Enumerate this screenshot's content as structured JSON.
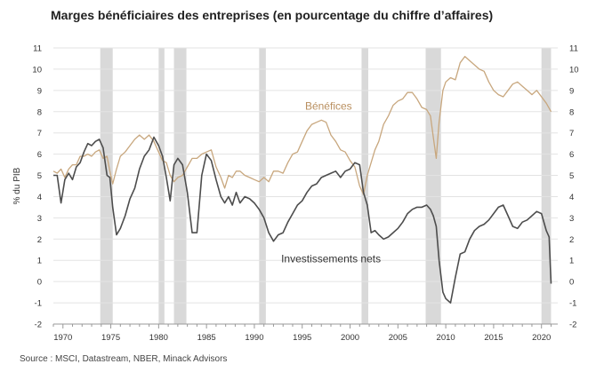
{
  "title": "Marges bénéficiaires des entreprises (en pourcentage du chiffre d’affaires)",
  "source": "Source : MSCI, Datastream, NBER, Minack Advisors",
  "chart_data": {
    "type": "line",
    "ylabel": "% du PIB",
    "xlabel": "",
    "xlim": [
      1969,
      2021.7
    ],
    "ylim": [
      -2,
      11
    ],
    "y_ticks": [
      -2,
      -1,
      0,
      1,
      2,
      3,
      4,
      5,
      6,
      7,
      8,
      9,
      10,
      11
    ],
    "x_ticks": [
      1970,
      1975,
      1980,
      1985,
      1990,
      1995,
      2000,
      2005,
      2010,
      2015,
      2020
    ],
    "grid": "horizontal",
    "recessions": [
      [
        1973.9,
        1975.2
      ],
      [
        1980.0,
        1980.6
      ],
      [
        1981.6,
        1982.9
      ],
      [
        1990.5,
        1991.2
      ],
      [
        2001.2,
        2001.9
      ],
      [
        2007.9,
        2009.5
      ],
      [
        2020.0,
        2021.0
      ]
    ],
    "colors": {
      "profits": "#c8a77e",
      "net_investment": "#4d4d4d",
      "recession": "#d9d9d9",
      "grid": "#e3e3e3"
    },
    "series": [
      {
        "name": "Bénéfices",
        "points": [
          [
            1969.0,
            5.2
          ],
          [
            1969.4,
            5.1
          ],
          [
            1969.8,
            5.3
          ],
          [
            1970.2,
            4.9
          ],
          [
            1970.6,
            5.3
          ],
          [
            1971.0,
            5.5
          ],
          [
            1971.4,
            5.5
          ],
          [
            1971.8,
            5.9
          ],
          [
            1972.2,
            5.9
          ],
          [
            1972.6,
            6.0
          ],
          [
            1973.0,
            5.9
          ],
          [
            1973.4,
            6.1
          ],
          [
            1973.8,
            6.2
          ],
          [
            1974.2,
            5.8
          ],
          [
            1974.6,
            5.9
          ],
          [
            1974.9,
            5.2
          ],
          [
            1975.2,
            4.6
          ],
          [
            1975.6,
            5.3
          ],
          [
            1976.0,
            5.9
          ],
          [
            1976.5,
            6.1
          ],
          [
            1977.0,
            6.4
          ],
          [
            1977.5,
            6.7
          ],
          [
            1978.0,
            6.9
          ],
          [
            1978.5,
            6.7
          ],
          [
            1979.0,
            6.9
          ],
          [
            1979.5,
            6.6
          ],
          [
            1980.0,
            6.1
          ],
          [
            1980.4,
            5.7
          ],
          [
            1980.8,
            5.6
          ],
          [
            1981.2,
            5.0
          ],
          [
            1981.6,
            4.7
          ],
          [
            1982.0,
            4.9
          ],
          [
            1982.5,
            5.0
          ],
          [
            1983.0,
            5.4
          ],
          [
            1983.5,
            5.8
          ],
          [
            1984.0,
            5.8
          ],
          [
            1984.5,
            6.0
          ],
          [
            1985.0,
            6.1
          ],
          [
            1985.5,
            6.2
          ],
          [
            1986.0,
            5.4
          ],
          [
            1986.5,
            4.9
          ],
          [
            1986.9,
            4.4
          ],
          [
            1987.3,
            5.0
          ],
          [
            1987.7,
            4.9
          ],
          [
            1988.1,
            5.2
          ],
          [
            1988.5,
            5.2
          ],
          [
            1989.0,
            5.0
          ],
          [
            1989.5,
            4.9
          ],
          [
            1990.0,
            4.8
          ],
          [
            1990.5,
            4.7
          ],
          [
            1991.0,
            4.9
          ],
          [
            1991.5,
            4.7
          ],
          [
            1992.0,
            5.2
          ],
          [
            1992.5,
            5.2
          ],
          [
            1993.0,
            5.1
          ],
          [
            1993.5,
            5.6
          ],
          [
            1994.0,
            6.0
          ],
          [
            1994.5,
            6.1
          ],
          [
            1995.0,
            6.6
          ],
          [
            1995.5,
            7.1
          ],
          [
            1996.0,
            7.4
          ],
          [
            1996.5,
            7.5
          ],
          [
            1997.0,
            7.6
          ],
          [
            1997.5,
            7.5
          ],
          [
            1998.0,
            6.9
          ],
          [
            1998.5,
            6.6
          ],
          [
            1999.0,
            6.2
          ],
          [
            1999.5,
            6.1
          ],
          [
            2000.0,
            5.7
          ],
          [
            2000.5,
            5.4
          ],
          [
            2001.0,
            4.5
          ],
          [
            2001.4,
            4.1
          ],
          [
            2001.8,
            5.0
          ],
          [
            2002.2,
            5.6
          ],
          [
            2002.6,
            6.2
          ],
          [
            2003.0,
            6.6
          ],
          [
            2003.5,
            7.4
          ],
          [
            2004.0,
            7.8
          ],
          [
            2004.5,
            8.3
          ],
          [
            2005.0,
            8.5
          ],
          [
            2005.5,
            8.6
          ],
          [
            2006.0,
            8.9
          ],
          [
            2006.5,
            8.9
          ],
          [
            2007.0,
            8.6
          ],
          [
            2007.5,
            8.2
          ],
          [
            2008.0,
            8.1
          ],
          [
            2008.4,
            7.8
          ],
          [
            2008.7,
            6.8
          ],
          [
            2009.0,
            5.8
          ],
          [
            2009.3,
            7.5
          ],
          [
            2009.7,
            9.0
          ],
          [
            2010.0,
            9.4
          ],
          [
            2010.5,
            9.6
          ],
          [
            2011.0,
            9.5
          ],
          [
            2011.5,
            10.3
          ],
          [
            2012.0,
            10.6
          ],
          [
            2012.5,
            10.4
          ],
          [
            2013.0,
            10.2
          ],
          [
            2013.5,
            10.0
          ],
          [
            2014.0,
            9.9
          ],
          [
            2014.5,
            9.4
          ],
          [
            2015.0,
            9.0
          ],
          [
            2015.5,
            8.8
          ],
          [
            2016.0,
            8.7
          ],
          [
            2016.5,
            9.0
          ],
          [
            2017.0,
            9.3
          ],
          [
            2017.5,
            9.4
          ],
          [
            2018.0,
            9.2
          ],
          [
            2018.5,
            9.0
          ],
          [
            2019.0,
            8.8
          ],
          [
            2019.5,
            9.0
          ],
          [
            2020.0,
            8.7
          ],
          [
            2020.5,
            8.4
          ],
          [
            2021.0,
            8.0
          ]
        ]
      },
      {
        "name": "Investissements nets",
        "points": [
          [
            1969.0,
            5.0
          ],
          [
            1969.4,
            5.0
          ],
          [
            1969.8,
            3.7
          ],
          [
            1970.2,
            4.8
          ],
          [
            1970.6,
            5.1
          ],
          [
            1971.0,
            4.8
          ],
          [
            1971.4,
            5.4
          ],
          [
            1971.8,
            5.6
          ],
          [
            1972.2,
            6.1
          ],
          [
            1972.6,
            6.5
          ],
          [
            1973.0,
            6.4
          ],
          [
            1973.4,
            6.6
          ],
          [
            1973.8,
            6.7
          ],
          [
            1974.2,
            6.3
          ],
          [
            1974.6,
            5.0
          ],
          [
            1974.9,
            4.9
          ],
          [
            1975.2,
            3.5
          ],
          [
            1975.6,
            2.2
          ],
          [
            1976.0,
            2.5
          ],
          [
            1976.5,
            3.1
          ],
          [
            1977.0,
            3.9
          ],
          [
            1977.5,
            4.4
          ],
          [
            1978.0,
            5.3
          ],
          [
            1978.5,
            5.9
          ],
          [
            1979.0,
            6.2
          ],
          [
            1979.5,
            6.8
          ],
          [
            1980.0,
            6.4
          ],
          [
            1980.4,
            5.9
          ],
          [
            1980.8,
            4.9
          ],
          [
            1981.2,
            3.8
          ],
          [
            1981.6,
            5.5
          ],
          [
            1982.0,
            5.8
          ],
          [
            1982.5,
            5.5
          ],
          [
            1983.0,
            4.2
          ],
          [
            1983.5,
            2.3
          ],
          [
            1984.0,
            2.3
          ],
          [
            1984.5,
            5.0
          ],
          [
            1985.0,
            6.0
          ],
          [
            1985.5,
            5.7
          ],
          [
            1986.0,
            4.8
          ],
          [
            1986.5,
            4.0
          ],
          [
            1986.9,
            3.7
          ],
          [
            1987.3,
            4.0
          ],
          [
            1987.7,
            3.6
          ],
          [
            1988.1,
            4.2
          ],
          [
            1988.5,
            3.7
          ],
          [
            1989.0,
            4.0
          ],
          [
            1989.5,
            3.9
          ],
          [
            1990.0,
            3.7
          ],
          [
            1990.5,
            3.4
          ],
          [
            1991.0,
            3.0
          ],
          [
            1991.5,
            2.3
          ],
          [
            1992.0,
            1.9
          ],
          [
            1992.5,
            2.2
          ],
          [
            1993.0,
            2.3
          ],
          [
            1993.5,
            2.8
          ],
          [
            1994.0,
            3.2
          ],
          [
            1994.5,
            3.6
          ],
          [
            1995.0,
            3.8
          ],
          [
            1995.5,
            4.2
          ],
          [
            1996.0,
            4.5
          ],
          [
            1996.5,
            4.6
          ],
          [
            1997.0,
            4.9
          ],
          [
            1997.5,
            5.0
          ],
          [
            1998.0,
            5.1
          ],
          [
            1998.5,
            5.2
          ],
          [
            1999.0,
            4.9
          ],
          [
            1999.5,
            5.2
          ],
          [
            2000.0,
            5.3
          ],
          [
            2000.5,
            5.6
          ],
          [
            2001.0,
            5.5
          ],
          [
            2001.4,
            4.2
          ],
          [
            2001.8,
            3.6
          ],
          [
            2002.2,
            2.3
          ],
          [
            2002.6,
            2.4
          ],
          [
            2003.0,
            2.2
          ],
          [
            2003.5,
            2.0
          ],
          [
            2004.0,
            2.1
          ],
          [
            2004.5,
            2.3
          ],
          [
            2005.0,
            2.5
          ],
          [
            2005.5,
            2.8
          ],
          [
            2006.0,
            3.2
          ],
          [
            2006.5,
            3.4
          ],
          [
            2007.0,
            3.5
          ],
          [
            2007.5,
            3.5
          ],
          [
            2008.0,
            3.6
          ],
          [
            2008.4,
            3.4
          ],
          [
            2008.7,
            3.1
          ],
          [
            2009.0,
            2.6
          ],
          [
            2009.3,
            1.0
          ],
          [
            2009.7,
            -0.5
          ],
          [
            2010.0,
            -0.8
          ],
          [
            2010.5,
            -1.0
          ],
          [
            2011.0,
            0.2
          ],
          [
            2011.5,
            1.3
          ],
          [
            2012.0,
            1.4
          ],
          [
            2012.5,
            2.0
          ],
          [
            2013.0,
            2.4
          ],
          [
            2013.5,
            2.6
          ],
          [
            2014.0,
            2.7
          ],
          [
            2014.5,
            2.9
          ],
          [
            2015.0,
            3.2
          ],
          [
            2015.5,
            3.5
          ],
          [
            2016.0,
            3.6
          ],
          [
            2016.5,
            3.1
          ],
          [
            2017.0,
            2.6
          ],
          [
            2017.5,
            2.5
          ],
          [
            2018.0,
            2.8
          ],
          [
            2018.5,
            2.9
          ],
          [
            2019.0,
            3.1
          ],
          [
            2019.5,
            3.3
          ],
          [
            2020.0,
            3.2
          ],
          [
            2020.5,
            2.4
          ],
          [
            2020.8,
            2.1
          ],
          [
            2021.0,
            -0.1
          ]
        ]
      }
    ]
  }
}
